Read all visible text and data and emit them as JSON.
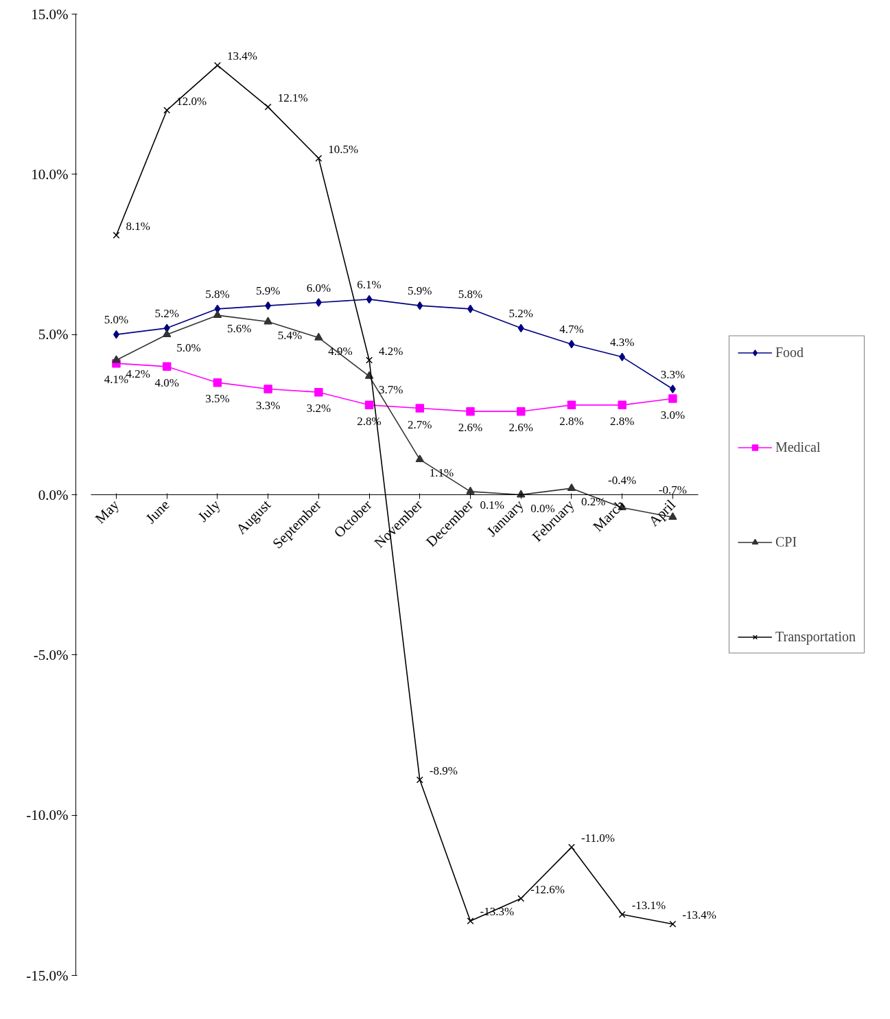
{
  "chart_data": {
    "type": "line",
    "categories": [
      "May",
      "June",
      "July",
      "August",
      "September",
      "October",
      "November",
      "December",
      "January",
      "February",
      "March",
      "April"
    ],
    "series": [
      {
        "name": "Food",
        "color": "#000080",
        "marker": "diamond",
        "values": [
          5.0,
          5.2,
          5.8,
          5.9,
          6.0,
          6.1,
          5.9,
          5.8,
          5.2,
          4.7,
          4.3,
          3.3
        ],
        "value_labels": [
          "5.0%",
          "5.2%",
          "5.8%",
          "5.9%",
          "6.0%",
          "6.1%",
          "5.9%",
          "5.8%",
          "5.2%",
          "4.7%",
          "4.3%",
          "3.3%"
        ]
      },
      {
        "name": "Medical",
        "color": "#ff00ff",
        "marker": "square",
        "values": [
          4.1,
          4.0,
          3.5,
          3.3,
          3.2,
          2.8,
          2.7,
          2.6,
          2.6,
          2.8,
          2.8,
          3.0
        ],
        "value_labels": [
          "4.1%",
          "4.0%",
          "3.5%",
          "3.3%",
          "3.2%",
          "2.8%",
          "2.7%",
          "2.6%",
          "2.6%",
          "2.8%",
          "2.8%",
          "3.0%"
        ]
      },
      {
        "name": "CPI",
        "color": "#333333",
        "marker": "triangle",
        "values": [
          4.2,
          5.0,
          5.6,
          5.4,
          4.9,
          3.7,
          1.1,
          0.1,
          0.0,
          0.2,
          -0.4,
          -0.7
        ],
        "value_labels": [
          "4.2%",
          "5.0%",
          "5.6%",
          "5.4%",
          "4.9%",
          "3.7%",
          "1.1%",
          "0.1%",
          "0.0%",
          "0.2%",
          "-0.4%",
          "-0.7%"
        ]
      },
      {
        "name": "Transportation",
        "color": "#000000",
        "marker": "cross",
        "values": [
          8.1,
          12.0,
          13.4,
          12.1,
          10.5,
          4.2,
          -8.9,
          -13.3,
          -12.6,
          -11.0,
          -13.1,
          -13.4
        ],
        "value_labels": [
          "8.1%",
          "12.0%",
          "13.4%",
          "12.1%",
          "10.5%",
          "4.2%",
          "-8.9%",
          "-13.3%",
          "-12.6%",
          "-11.0%",
          "-13.1%",
          "-13.4%"
        ]
      }
    ],
    "ylim": [
      -15,
      15
    ],
    "yticks": [
      {
        "value": -15,
        "label": "-15.0%"
      },
      {
        "value": -10,
        "label": "-10.0%"
      },
      {
        "value": -5,
        "label": "-5.0%"
      },
      {
        "value": 0,
        "label": "0.0%"
      },
      {
        "value": 5,
        "label": "5.0%"
      },
      {
        "value": 10,
        "label": "10.0%"
      },
      {
        "value": 15,
        "label": "15.0%"
      }
    ],
    "grid": false,
    "legend": "right",
    "line_style": "solid"
  }
}
